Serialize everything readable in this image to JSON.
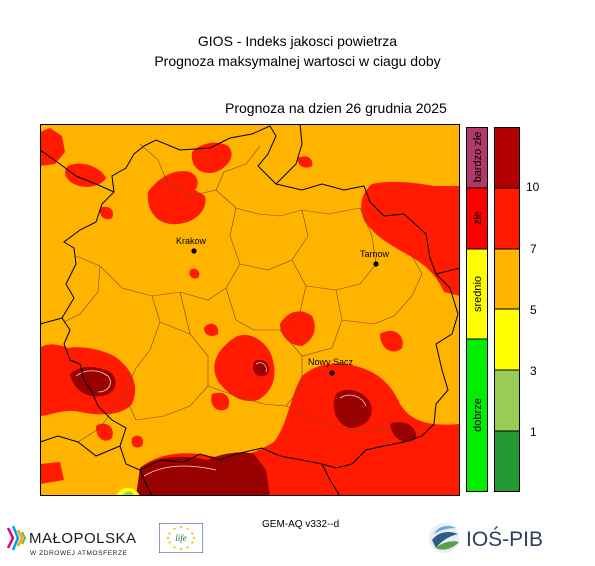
{
  "header": {
    "title": "GIOS - Indeks jakosci powietrza",
    "subtitle": "Prognoza maksymalnej wartosci w ciagu doby",
    "forecast_date": "Prognoza na dzien  26 grudnia 2025"
  },
  "map": {
    "cities": [
      {
        "name": "Krakow"
      },
      {
        "name": "Tarnow"
      },
      {
        "name": "Nowy Sacz"
      }
    ],
    "colors": {
      "very_bad": "#990000",
      "bad": "#ff1a00",
      "moderate": "#ffb400",
      "sufficient": "#ffff00",
      "good": "#00cc00",
      "boundary": "#000000"
    }
  },
  "category_legend": [
    {
      "label": "bardzo złe",
      "color": "#b03a66"
    },
    {
      "label": "złe",
      "color": "#ff0000"
    },
    {
      "label": "srednio",
      "color": "#ffff00"
    },
    {
      "label": "dobrze",
      "color": "#00ee00"
    }
  ],
  "scale_legend": {
    "ticks": [
      "10",
      "7",
      "5",
      "3",
      "1"
    ],
    "colors": [
      "#b30000",
      "#ff1a00",
      "#ffb400",
      "#ffff00",
      "#99cc55",
      "#229933"
    ]
  },
  "footer": {
    "model": "GEM-AQ v332--d",
    "logo_malopolska": {
      "name": "MAŁOPOLSKA",
      "tagline": "W ZDROWEJ ATMOSFERZE"
    },
    "logo_eu": {
      "text": "life"
    },
    "logo_ios": {
      "text": "IOŚ-PIB"
    }
  }
}
